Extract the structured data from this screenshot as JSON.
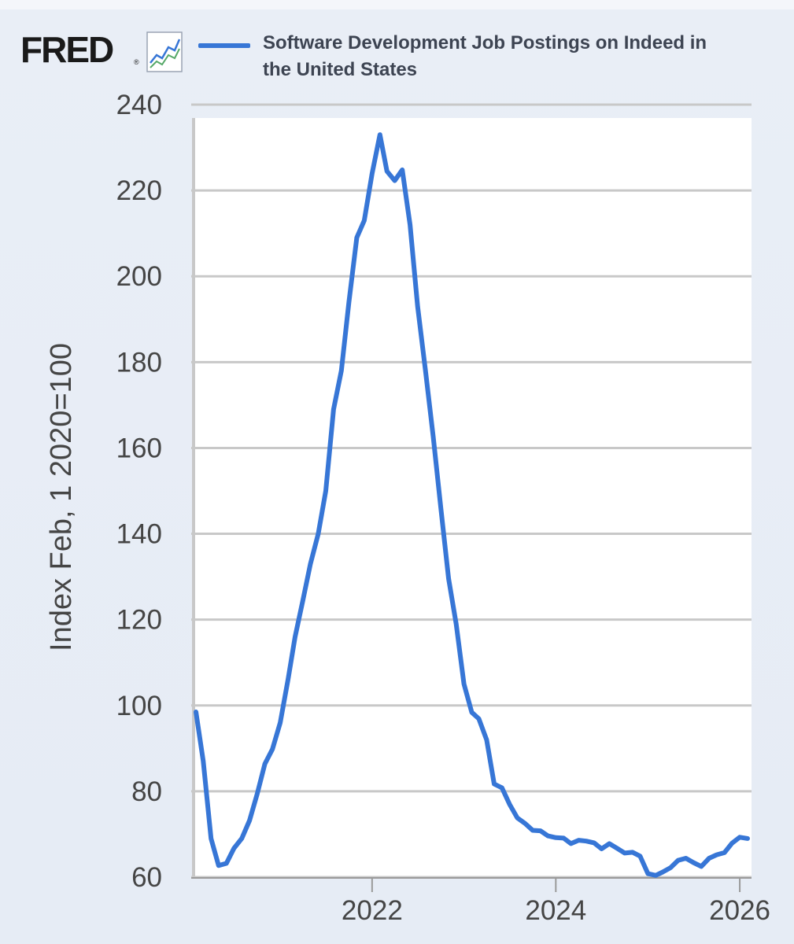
{
  "header": {
    "logo_text": "FRED",
    "logo_mark": "®",
    "graph_icon": "line-graph-icon",
    "legend_color": "#3776d6"
  },
  "chart_data": {
    "type": "line",
    "title": "Software Development Job Postings on Indeed in the United States",
    "ylabel": "Index Feb, 1 2020=100",
    "xlabel": "",
    "ylim": [
      60,
      240
    ],
    "yticks": [
      60,
      80,
      100,
      120,
      140,
      160,
      180,
      200,
      220,
      240
    ],
    "xticks": [
      "2022",
      "2024",
      "2026"
    ],
    "grid": true,
    "series": [
      {
        "name": "Software Development Job Postings on Indeed in the United States",
        "color": "#3776d6",
        "x": [
          "2020-02-01",
          "2020-03-01",
          "2020-04-01",
          "2020-05-01",
          "2020-06-01",
          "2020-07-01",
          "2020-08-01",
          "2020-09-01",
          "2020-10-01",
          "2020-11-01",
          "2020-12-01",
          "2021-01-01",
          "2021-02-01",
          "2021-03-01",
          "2021-04-01",
          "2021-05-01",
          "2021-06-01",
          "2021-07-01",
          "2021-08-01",
          "2021-09-01",
          "2021-10-01",
          "2021-11-01",
          "2021-12-01",
          "2022-01-01",
          "2022-02-01",
          "2022-03-01",
          "2022-04-01",
          "2022-05-01",
          "2022-06-01",
          "2022-07-01",
          "2022-08-01",
          "2022-09-01",
          "2022-10-01",
          "2022-11-01",
          "2022-12-01",
          "2023-01-01",
          "2023-02-01",
          "2023-03-01",
          "2023-04-01",
          "2023-05-01",
          "2023-06-01",
          "2023-07-01",
          "2023-08-01",
          "2023-09-01",
          "2023-10-01",
          "2023-11-01",
          "2023-12-01",
          "2024-01-01",
          "2024-02-01",
          "2024-03-01",
          "2024-04-01",
          "2024-05-01",
          "2024-06-01",
          "2024-07-01",
          "2024-08-01",
          "2024-09-01",
          "2024-10-01",
          "2024-11-01",
          "2024-12-01",
          "2025-01-01",
          "2025-02-01",
          "2025-03-01",
          "2025-04-01",
          "2025-05-01",
          "2025-06-01",
          "2025-07-01",
          "2025-08-01",
          "2025-09-01",
          "2025-10-01",
          "2025-11-01",
          "2025-12-01",
          "2026-01-01",
          "2026-02-01"
        ],
        "values": [
          98.5,
          87,
          69,
          62.7,
          63.2,
          66.7,
          69,
          73.2,
          79.3,
          86.4,
          89.8,
          96,
          106,
          116,
          124.5,
          133,
          140,
          150,
          169,
          178,
          194,
          209,
          213,
          224,
          233,
          224.5,
          222.3,
          224.8,
          212,
          193,
          178,
          162.5,
          146,
          129.5,
          119,
          105,
          98.4,
          96.9,
          92,
          81.7,
          80.8,
          77,
          73.8,
          72.5,
          70.9,
          70.8,
          69.6,
          69.2,
          69.1,
          67.8,
          68.6,
          68.4,
          68,
          66.6,
          67.8,
          66.7,
          65.6,
          65.8,
          64.9,
          60.8,
          60.4,
          61.2,
          62.2,
          63.9,
          64.4,
          63.4,
          62.5,
          64.4,
          65.2,
          65.7,
          67.9,
          69.3,
          69
        ]
      }
    ]
  }
}
